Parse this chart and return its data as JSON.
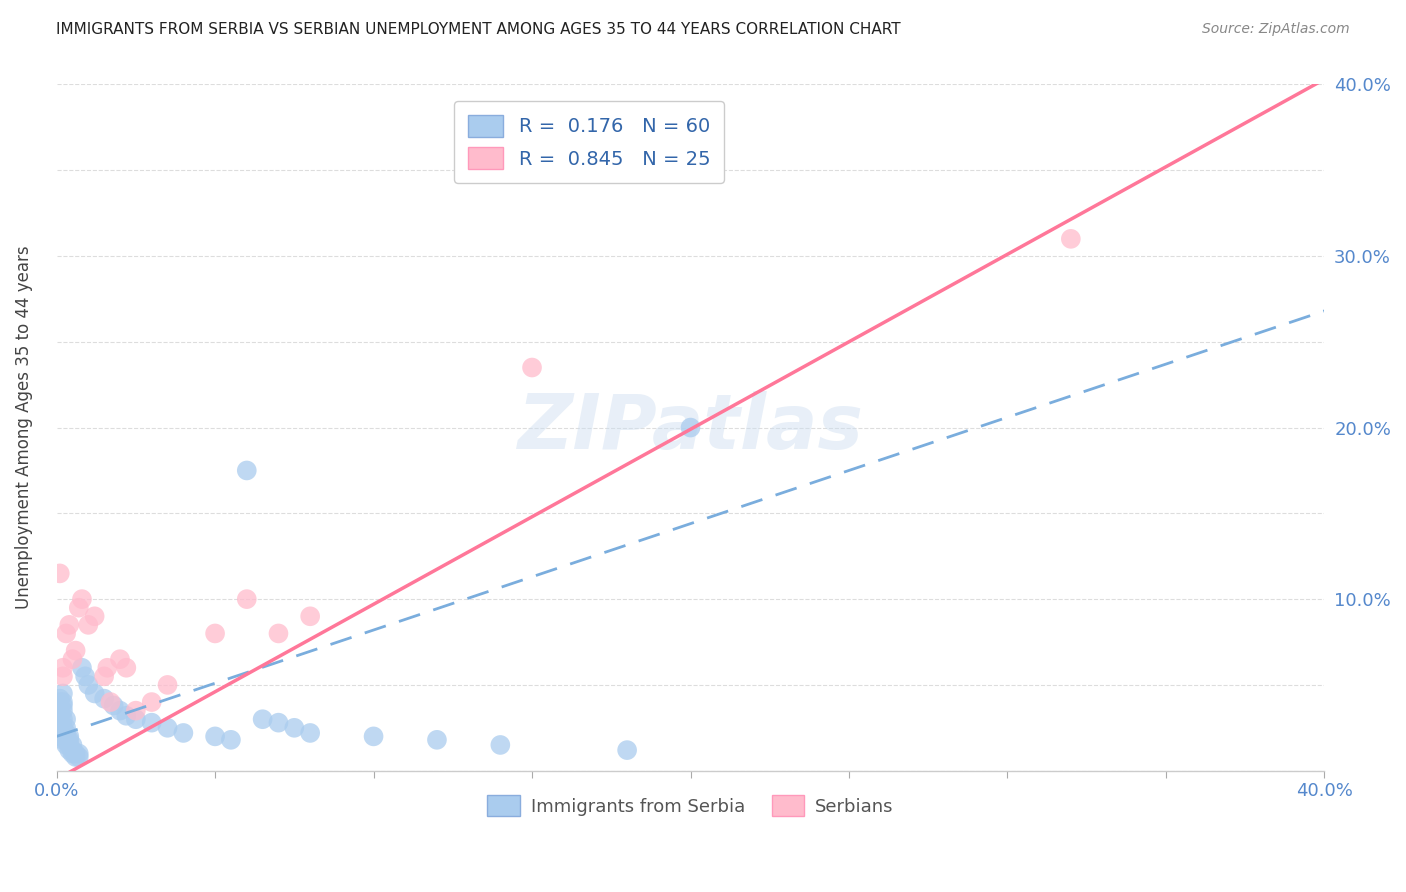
{
  "title": "IMMIGRANTS FROM SERBIA VS SERBIAN UNEMPLOYMENT AMONG AGES 35 TO 44 YEARS CORRELATION CHART",
  "source_text": "Source: ZipAtlas.com",
  "ylabel": "Unemployment Among Ages 35 to 44 years",
  "watermark": "ZIPatlas",
  "xmin": 0.0,
  "xmax": 0.4,
  "ymin": 0.0,
  "ymax": 0.4,
  "blue_R": 0.176,
  "blue_N": 60,
  "pink_R": 0.845,
  "pink_N": 25,
  "blue_scatter_x": [
    0.001,
    0.001,
    0.001,
    0.001,
    0.001,
    0.001,
    0.001,
    0.001,
    0.001,
    0.001,
    0.002,
    0.002,
    0.002,
    0.002,
    0.002,
    0.002,
    0.002,
    0.002,
    0.002,
    0.003,
    0.003,
    0.003,
    0.003,
    0.003,
    0.003,
    0.004,
    0.004,
    0.004,
    0.004,
    0.005,
    0.005,
    0.005,
    0.006,
    0.006,
    0.007,
    0.007,
    0.008,
    0.009,
    0.01,
    0.012,
    0.015,
    0.018,
    0.02,
    0.022,
    0.025,
    0.03,
    0.035,
    0.04,
    0.05,
    0.055,
    0.06,
    0.065,
    0.07,
    0.075,
    0.08,
    0.1,
    0.12,
    0.14,
    0.18,
    0.2
  ],
  "blue_scatter_y": [
    0.02,
    0.022,
    0.025,
    0.028,
    0.03,
    0.032,
    0.035,
    0.038,
    0.04,
    0.042,
    0.018,
    0.02,
    0.022,
    0.025,
    0.03,
    0.035,
    0.038,
    0.04,
    0.045,
    0.015,
    0.018,
    0.02,
    0.022,
    0.025,
    0.03,
    0.012,
    0.015,
    0.018,
    0.02,
    0.01,
    0.012,
    0.015,
    0.008,
    0.01,
    0.008,
    0.01,
    0.06,
    0.055,
    0.05,
    0.045,
    0.042,
    0.038,
    0.035,
    0.032,
    0.03,
    0.028,
    0.025,
    0.022,
    0.02,
    0.018,
    0.175,
    0.03,
    0.028,
    0.025,
    0.022,
    0.02,
    0.018,
    0.015,
    0.012,
    0.2
  ],
  "pink_scatter_x": [
    0.001,
    0.002,
    0.002,
    0.003,
    0.004,
    0.005,
    0.006,
    0.007,
    0.008,
    0.01,
    0.012,
    0.015,
    0.016,
    0.017,
    0.02,
    0.022,
    0.025,
    0.03,
    0.035,
    0.05,
    0.06,
    0.07,
    0.08,
    0.15,
    0.32
  ],
  "pink_scatter_y": [
    0.115,
    0.055,
    0.06,
    0.08,
    0.085,
    0.065,
    0.07,
    0.095,
    0.1,
    0.085,
    0.09,
    0.055,
    0.06,
    0.04,
    0.065,
    0.06,
    0.035,
    0.04,
    0.05,
    0.08,
    0.1,
    0.08,
    0.09,
    0.235,
    0.31
  ],
  "blue_line_intercept": 0.02,
  "blue_line_slope": 0.62,
  "pink_line_intercept": -0.005,
  "pink_line_slope": 1.02,
  "blue_line_color": "#7AADDD",
  "pink_line_color": "#FF7799",
  "blue_scatter_color": "#AACCEE",
  "pink_scatter_color": "#FFBBCC",
  "background_color": "#FFFFFF",
  "grid_color": "#DDDDDD",
  "title_color": "#222222",
  "axis_label_color": "#444444",
  "tick_color": "#5588CC",
  "legend_text_color": "#3366AA"
}
